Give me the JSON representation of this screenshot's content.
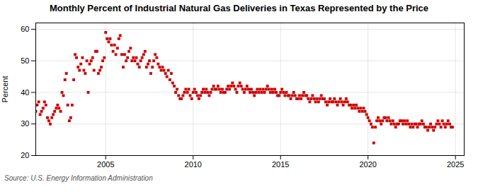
{
  "chart_data": {
    "type": "scatter",
    "title": "Monthly Percent of Industrial Natural Gas Deliveries in Texas Represented by the Price",
    "ylabel": "Percent",
    "source": "Source: U.S. Energy Information Administration",
    "color": "#cc0000",
    "marker": "square",
    "grid": true,
    "xlim": [
      2001.0,
      2025.5
    ],
    "xticks": [
      2005,
      2010,
      2015,
      2020,
      2025
    ],
    "ylim": [
      20,
      62
    ],
    "yticks": [
      20,
      30,
      40,
      50,
      60
    ],
    "x": [
      2001.0,
      2001.08,
      2001.17,
      2001.25,
      2001.33,
      2001.42,
      2001.5,
      2001.58,
      2001.67,
      2001.75,
      2001.83,
      2001.92,
      2002.0,
      2002.08,
      2002.17,
      2002.25,
      2002.33,
      2002.42,
      2002.5,
      2002.58,
      2002.67,
      2002.75,
      2002.83,
      2002.92,
      2003.0,
      2003.08,
      2003.17,
      2003.25,
      2003.33,
      2003.42,
      2003.5,
      2003.58,
      2003.67,
      2003.75,
      2003.83,
      2003.92,
      2004.0,
      2004.08,
      2004.17,
      2004.25,
      2004.33,
      2004.42,
      2004.5,
      2004.58,
      2004.67,
      2004.75,
      2004.83,
      2004.92,
      2005.0,
      2005.08,
      2005.17,
      2005.25,
      2005.33,
      2005.42,
      2005.5,
      2005.58,
      2005.67,
      2005.75,
      2005.83,
      2005.92,
      2006.0,
      2006.08,
      2006.17,
      2006.25,
      2006.33,
      2006.42,
      2006.5,
      2006.58,
      2006.67,
      2006.75,
      2006.83,
      2006.92,
      2007.0,
      2007.08,
      2007.17,
      2007.25,
      2007.33,
      2007.42,
      2007.5,
      2007.58,
      2007.67,
      2007.75,
      2007.83,
      2007.92,
      2008.0,
      2008.08,
      2008.17,
      2008.25,
      2008.33,
      2008.42,
      2008.5,
      2008.58,
      2008.67,
      2008.75,
      2008.83,
      2008.92,
      2009.0,
      2009.08,
      2009.17,
      2009.25,
      2009.33,
      2009.42,
      2009.5,
      2009.58,
      2009.67,
      2009.75,
      2009.83,
      2009.92,
      2010.0,
      2010.08,
      2010.17,
      2010.25,
      2010.33,
      2010.42,
      2010.5,
      2010.58,
      2010.67,
      2010.75,
      2010.83,
      2010.92,
      2011.0,
      2011.08,
      2011.17,
      2011.25,
      2011.33,
      2011.42,
      2011.5,
      2011.58,
      2011.67,
      2011.75,
      2011.83,
      2011.92,
      2012.0,
      2012.08,
      2012.17,
      2012.25,
      2012.33,
      2012.42,
      2012.5,
      2012.58,
      2012.67,
      2012.75,
      2012.83,
      2012.92,
      2013.0,
      2013.08,
      2013.17,
      2013.25,
      2013.33,
      2013.42,
      2013.5,
      2013.58,
      2013.67,
      2013.75,
      2013.83,
      2013.92,
      2014.0,
      2014.08,
      2014.17,
      2014.25,
      2014.33,
      2014.42,
      2014.5,
      2014.58,
      2014.67,
      2014.75,
      2014.83,
      2014.92,
      2015.0,
      2015.08,
      2015.17,
      2015.25,
      2015.33,
      2015.42,
      2015.5,
      2015.58,
      2015.67,
      2015.75,
      2015.83,
      2015.92,
      2016.0,
      2016.08,
      2016.17,
      2016.25,
      2016.33,
      2016.42,
      2016.5,
      2016.58,
      2016.67,
      2016.75,
      2016.83,
      2016.92,
      2017.0,
      2017.08,
      2017.17,
      2017.25,
      2017.33,
      2017.42,
      2017.5,
      2017.58,
      2017.67,
      2017.75,
      2017.83,
      2017.92,
      2018.0,
      2018.08,
      2018.17,
      2018.25,
      2018.33,
      2018.42,
      2018.5,
      2018.58,
      2018.67,
      2018.75,
      2018.83,
      2018.92,
      2019.0,
      2019.08,
      2019.17,
      2019.25,
      2019.33,
      2019.42,
      2019.5,
      2019.58,
      2019.67,
      2019.75,
      2019.83,
      2019.92,
      2020.0,
      2020.08,
      2020.17,
      2020.25,
      2020.33,
      2020.42,
      2020.5,
      2020.58,
      2020.67,
      2020.75,
      2020.83,
      2020.92,
      2021.0,
      2021.08,
      2021.17,
      2021.25,
      2021.33,
      2021.42,
      2021.5,
      2021.58,
      2021.67,
      2021.75,
      2021.83,
      2021.92,
      2022.0,
      2022.08,
      2022.17,
      2022.25,
      2022.33,
      2022.42,
      2022.5,
      2022.58,
      2022.67,
      2022.75,
      2022.83,
      2022.92,
      2023.0,
      2023.08,
      2023.17,
      2023.25,
      2023.33,
      2023.42,
      2023.5,
      2023.58,
      2023.67,
      2023.75,
      2023.83,
      2023.92,
      2024.0,
      2024.08,
      2024.17,
      2024.25,
      2024.33,
      2024.42,
      2024.5,
      2024.58,
      2024.67,
      2024.75,
      2024.83
    ],
    "values": [
      34,
      36,
      37,
      33,
      34,
      35,
      37,
      36,
      32,
      31,
      30,
      32,
      33,
      34,
      35,
      36,
      35,
      34,
      40,
      39,
      44,
      46,
      36,
      31,
      32,
      36,
      44,
      52,
      51,
      48,
      47,
      49,
      51,
      47,
      46,
      50,
      40,
      49,
      50,
      51,
      47,
      53,
      53,
      46,
      47,
      48,
      50,
      51,
      59,
      57,
      56,
      57,
      55,
      53,
      55,
      52,
      54,
      57,
      58,
      52,
      48,
      52,
      50,
      51,
      53,
      54,
      50,
      51,
      50,
      51,
      49,
      48,
      50,
      51,
      52,
      53,
      48,
      49,
      50,
      46,
      48,
      50,
      52,
      51,
      49,
      48,
      47,
      48,
      47,
      46,
      45,
      47,
      44,
      46,
      43,
      42,
      40,
      41,
      39,
      38,
      38,
      39,
      40,
      41,
      40,
      41,
      39,
      38,
      40,
      41,
      40,
      39,
      38,
      39,
      40,
      41,
      40,
      41,
      40,
      39,
      40,
      41,
      42,
      41,
      41,
      42,
      41,
      40,
      41,
      40,
      40,
      41,
      42,
      41,
      42,
      43,
      42,
      41,
      40,
      42,
      43,
      42,
      41,
      40,
      41,
      42,
      41,
      40,
      41,
      40,
      39,
      40,
      41,
      40,
      41,
      40,
      41,
      40,
      41,
      42,
      41,
      40,
      41,
      40,
      41,
      40,
      39,
      39,
      40,
      41,
      40,
      39,
      40,
      39,
      39,
      38,
      39,
      40,
      39,
      38,
      38,
      39,
      38,
      39,
      40,
      39,
      39,
      38,
      37,
      38,
      39,
      38,
      37,
      38,
      37,
      38,
      39,
      38,
      38,
      37,
      36,
      37,
      38,
      37,
      37,
      38,
      37,
      36,
      37,
      38,
      37,
      36,
      37,
      38,
      37,
      36,
      36,
      35,
      36,
      35,
      36,
      35,
      34,
      35,
      34,
      35,
      34,
      33,
      32,
      31,
      30,
      29,
      24,
      29,
      31,
      32,
      31,
      30,
      31,
      32,
      32,
      31,
      32,
      31,
      30,
      31,
      30,
      29,
      30,
      30,
      31,
      31,
      30,
      31,
      30,
      31,
      30,
      29,
      30,
      29,
      30,
      30,
      29,
      30,
      30,
      31,
      30,
      29,
      29,
      28,
      29,
      30,
      29,
      28,
      29,
      30,
      31,
      30,
      29,
      31,
      30,
      29,
      30,
      31,
      30,
      29,
      29
    ]
  }
}
